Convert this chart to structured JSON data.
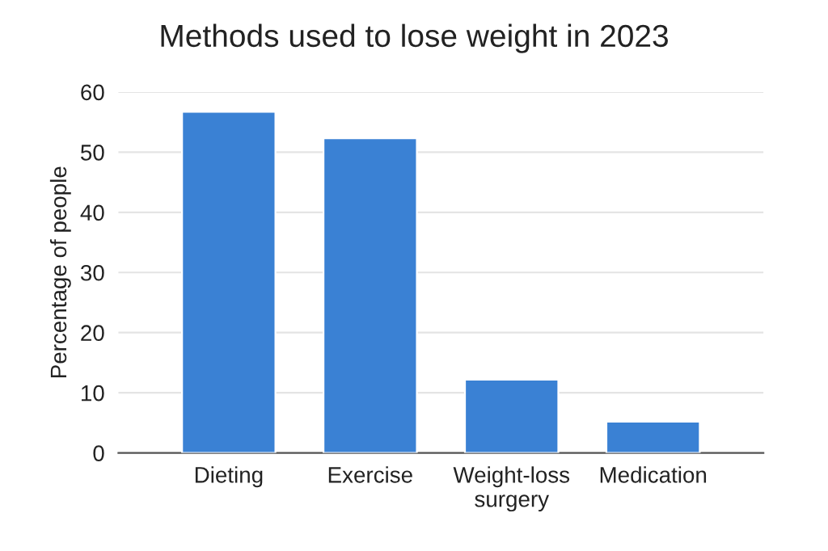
{
  "chart_data": {
    "type": "bar",
    "title": "Methods used to lose weight in 2023",
    "ylabel": "Percentage of people",
    "categories": [
      "Dieting",
      "Exercise",
      "Weight-loss\nsurgery",
      "Medication"
    ],
    "values": [
      56.7,
      52.3,
      12.2,
      5.2
    ],
    "color": "#3a81d4",
    "ylim": [
      0,
      60
    ],
    "yticks": [
      0,
      10,
      20,
      30,
      40,
      50,
      60
    ],
    "grid": "y"
  }
}
